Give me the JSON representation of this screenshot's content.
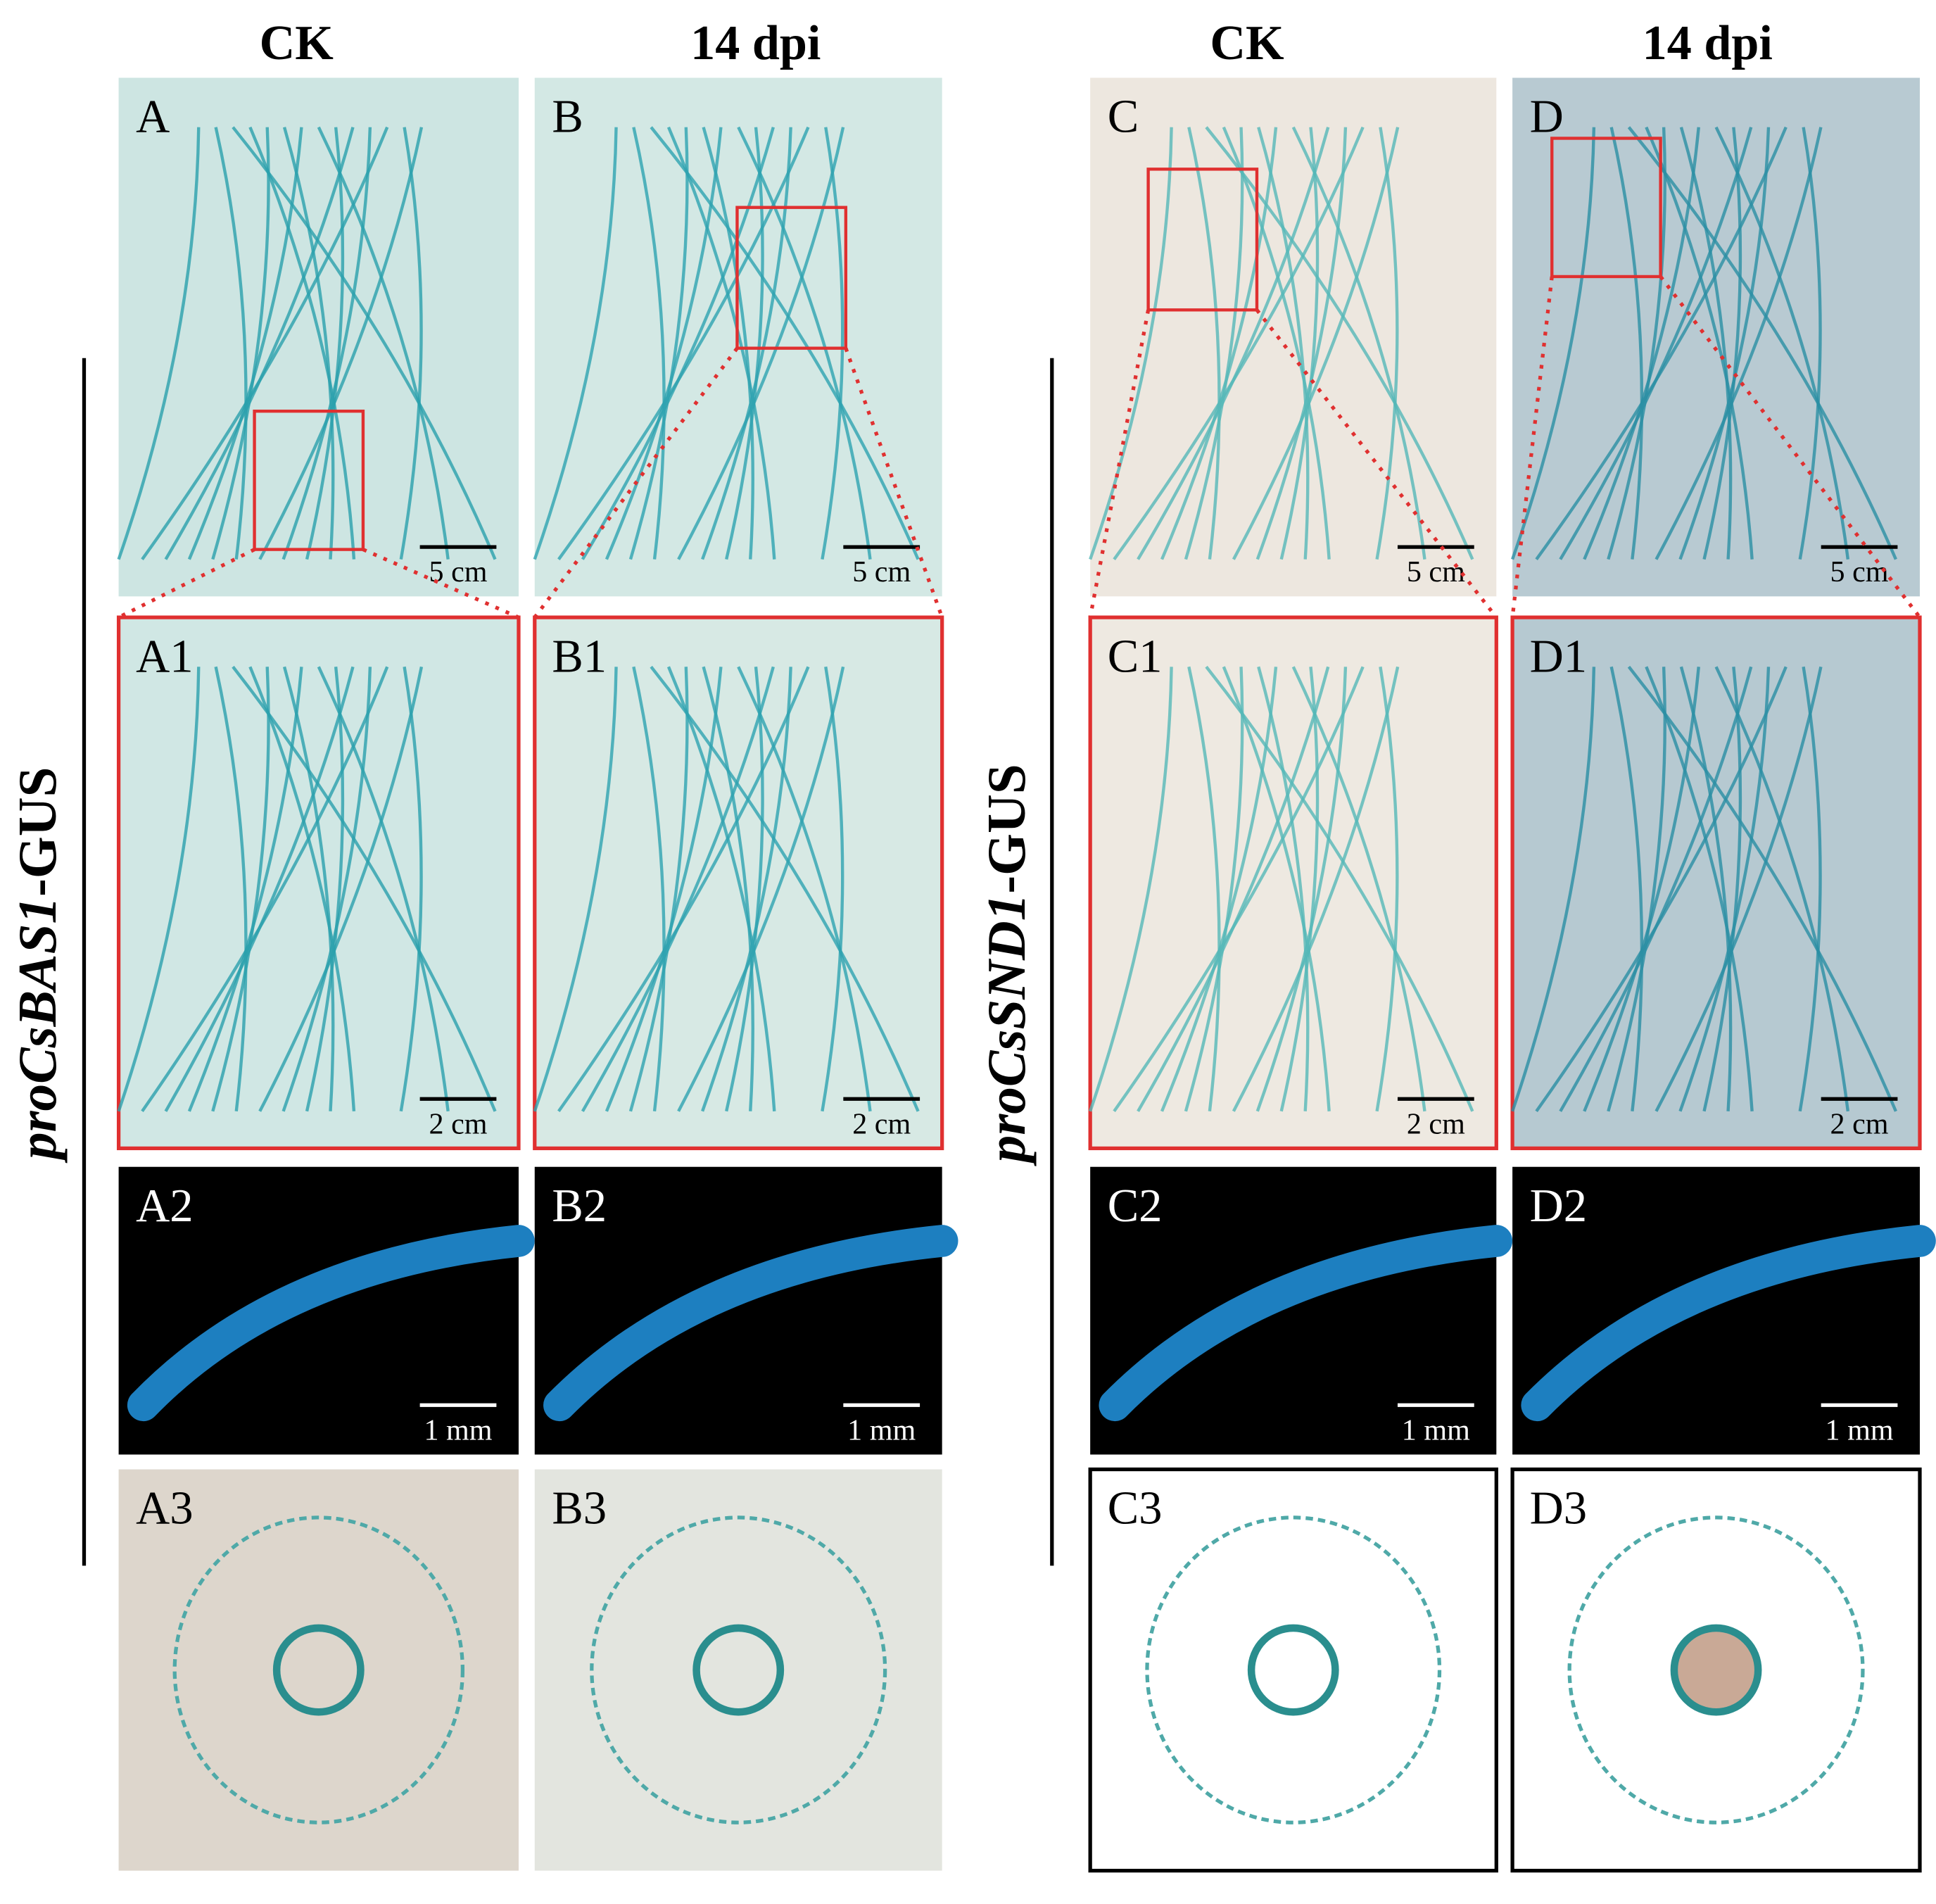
{
  "headers": [
    "CK",
    "14 dpi",
    "CK",
    "14 dpi"
  ],
  "row_labels": [
    {
      "gene": "proCsBAS1",
      "suffix": "-GUS"
    },
    {
      "gene": "proCsSND1",
      "suffix": "-GUS"
    }
  ],
  "panels": [
    {
      "label": "A",
      "scale": "5 cm"
    },
    {
      "label": "B",
      "scale": "5 cm"
    },
    {
      "label": "C",
      "scale": "5 cm"
    },
    {
      "label": "D",
      "scale": "5 cm"
    },
    {
      "label": "A1",
      "scale": "2 cm"
    },
    {
      "label": "B1",
      "scale": "2 cm"
    },
    {
      "label": "C1",
      "scale": "2 cm"
    },
    {
      "label": "D1",
      "scale": "2 cm"
    },
    {
      "label": "A2",
      "scale": "1 mm"
    },
    {
      "label": "B2",
      "scale": "1 mm"
    },
    {
      "label": "C2",
      "scale": "1 mm"
    },
    {
      "label": "D2",
      "scale": "1 mm"
    },
    {
      "label": "A3"
    },
    {
      "label": "B3"
    },
    {
      "label": "C3"
    },
    {
      "label": "D3"
    }
  ]
}
